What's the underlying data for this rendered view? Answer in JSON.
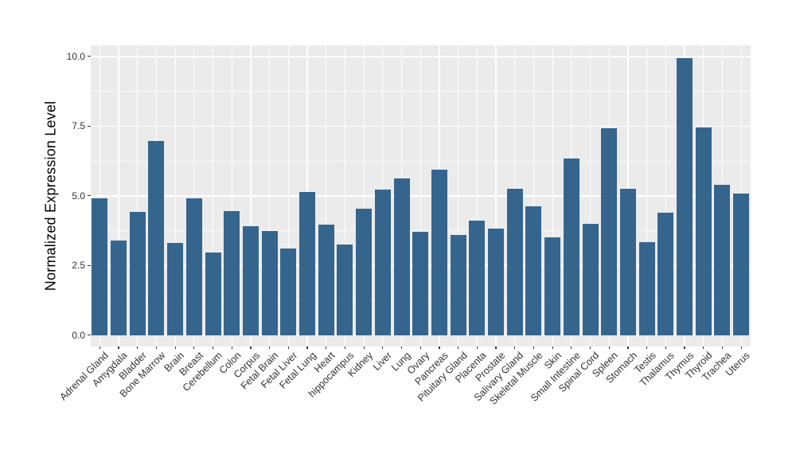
{
  "chart_data": {
    "type": "bar",
    "ylabel": "Normalized Expression Level",
    "xlabel": "",
    "ylim": [
      0,
      10
    ],
    "y_ticks": [
      "0.0",
      "2.5",
      "5.0",
      "7.5",
      "10.0"
    ],
    "y_minor": [
      1.25,
      3.75,
      6.25,
      8.75
    ],
    "x_tick_rotation": 45,
    "legend": "none",
    "grid": "on",
    "categories": [
      "Adrenal Gland",
      "Amygdala",
      "Bladder",
      "Bone Marrow",
      "Brain",
      "Breast",
      "Cerebellum",
      "Colon",
      "Corpus",
      "Fetal Brain",
      "Fetal Liver",
      "Fetal Lung",
      "Heart",
      "hippocampus",
      "Kidney",
      "Liver",
      "Lung",
      "Ovary",
      "Pancreas",
      "Pituitary Gland",
      "Placenta",
      "Prostate",
      "Salivary Gland",
      "Skeletal Muscle",
      "Skin",
      "Small Intestine",
      "Spinal Cord",
      "Spleen",
      "Stomach",
      "Testis",
      "Thalamus",
      "Thymus",
      "Thyroid",
      "Trachea",
      "Uterus"
    ],
    "values": [
      4.9,
      3.4,
      4.42,
      6.97,
      3.3,
      4.9,
      2.97,
      4.46,
      3.91,
      3.75,
      3.11,
      5.13,
      3.96,
      3.25,
      4.53,
      5.23,
      5.61,
      3.71,
      5.93,
      3.58,
      4.12,
      3.81,
      5.24,
      4.63,
      3.52,
      6.33,
      4.0,
      7.41,
      5.26,
      3.33,
      4.4,
      9.93,
      7.46,
      5.39,
      5.08
    ],
    "colors": {
      "bar": "#35658D",
      "panel_bg": "#EBEBEB",
      "grid": "#FFFFFF",
      "tick": "#333333",
      "tick_label": "#333333",
      "axis_title": "#000000"
    }
  }
}
